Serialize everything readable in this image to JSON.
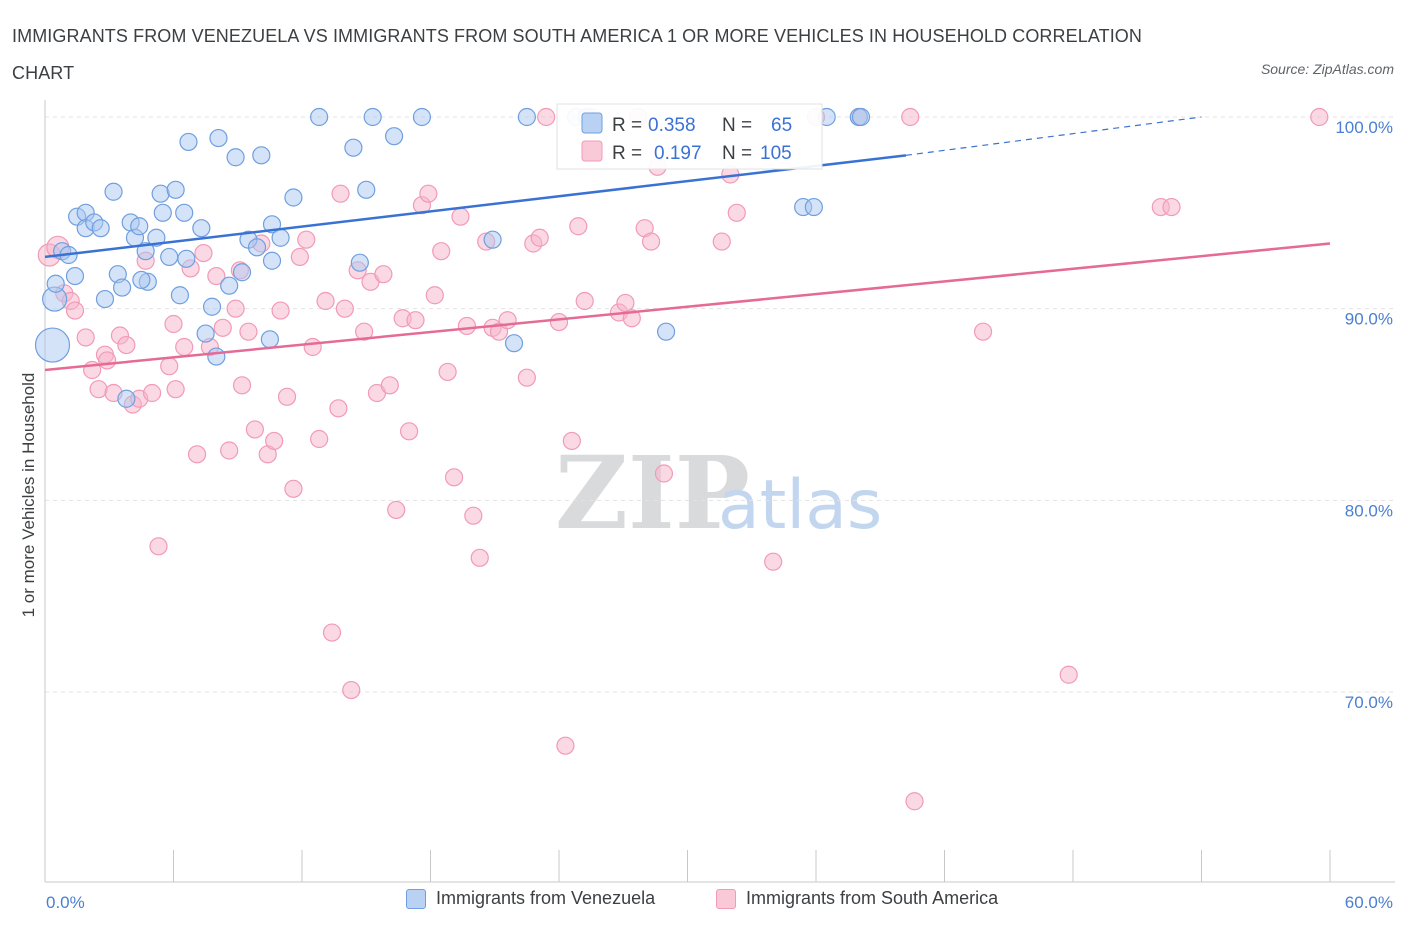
{
  "title": "IMMIGRANTS FROM VENEZUELA VS IMMIGRANTS FROM SOUTH AMERICA 1 OR MORE VEHICLES IN HOUSEHOLD CORRELATION CHART",
  "source": "Source: ZipAtlas.com",
  "watermark": {
    "zip": "ZIP",
    "atlas": "atlas"
  },
  "colors": {
    "venezuela": "#6f9fe0",
    "south_america": "#f29ab6",
    "venezuela_line": "#3a72d4",
    "south_america_line": "#e66a96"
  },
  "stats": {
    "r_label": "R =",
    "n_label": "N =",
    "venezuela": {
      "r": "0.358",
      "n": "65"
    },
    "south_america": {
      "r": "0.197",
      "n": "105"
    }
  },
  "legend": {
    "venezuela": "Immigrants from Venezuela",
    "south_america": "Immigrants from South America"
  },
  "chart_data": {
    "type": "scatter",
    "xlabel": "",
    "ylabel": "1 or more Vehicles in Household",
    "xlim": [
      0,
      60
    ],
    "ylim": [
      60,
      100
    ],
    "x_tick_labels": [
      "0.0%",
      "60.0%"
    ],
    "y_ticks": [
      70,
      80,
      90,
      100
    ],
    "y_tick_labels": [
      "70.0%",
      "80.0%",
      "90.0%",
      "100.0%"
    ],
    "grid": true,
    "legend_position": "bottom",
    "series": [
      {
        "name": "Immigrants from Venezuela",
        "trend": {
          "x0": 0,
          "y0": 92.7,
          "x1": 40.2,
          "y1": 98.0,
          "dashed_to_x": 54.0,
          "dashed_to_y": 100.0
        },
        "points": [
          [
            0.35,
            88.1
          ],
          [
            0.45,
            90.5
          ],
          [
            0.5,
            91.3
          ],
          [
            0.8,
            93.0
          ],
          [
            1.1,
            92.8
          ],
          [
            1.4,
            91.7
          ],
          [
            1.5,
            94.8
          ],
          [
            1.9,
            95.0
          ],
          [
            1.9,
            94.2
          ],
          [
            2.3,
            94.5
          ],
          [
            2.6,
            94.2
          ],
          [
            2.8,
            90.5
          ],
          [
            3.2,
            96.1
          ],
          [
            3.4,
            91.8
          ],
          [
            3.6,
            91.1
          ],
          [
            3.8,
            85.3
          ],
          [
            4.0,
            94.5
          ],
          [
            4.2,
            93.7
          ],
          [
            4.4,
            94.3
          ],
          [
            4.7,
            93.0
          ],
          [
            4.8,
            91.4
          ],
          [
            5.2,
            93.7
          ],
          [
            5.4,
            96.0
          ],
          [
            5.5,
            95.0
          ],
          [
            5.8,
            92.7
          ],
          [
            6.1,
            96.2
          ],
          [
            6.3,
            90.7
          ],
          [
            6.5,
            95.0
          ],
          [
            6.7,
            98.7
          ],
          [
            7.3,
            94.2
          ],
          [
            7.5,
            88.7
          ],
          [
            7.8,
            90.1
          ],
          [
            8.0,
            87.5
          ],
          [
            8.1,
            98.9
          ],
          [
            8.6,
            91.2
          ],
          [
            8.9,
            97.9
          ],
          [
            9.2,
            91.9
          ],
          [
            9.5,
            93.6
          ],
          [
            9.9,
            93.2
          ],
          [
            10.1,
            98.0
          ],
          [
            10.5,
            88.4
          ],
          [
            10.6,
            94.4
          ],
          [
            11.0,
            93.7
          ],
          [
            11.6,
            95.8
          ],
          [
            12.8,
            100.0
          ],
          [
            14.4,
            98.4
          ],
          [
            14.7,
            92.4
          ],
          [
            15.0,
            96.2
          ],
          [
            15.3,
            100.0
          ],
          [
            16.3,
            99.0
          ],
          [
            17.6,
            100.0
          ],
          [
            20.9,
            93.6
          ],
          [
            21.9,
            88.2
          ],
          [
            22.5,
            100.0
          ],
          [
            24.8,
            100.0
          ],
          [
            25.3,
            100.0
          ],
          [
            29.0,
            88.8
          ],
          [
            35.4,
            95.3
          ],
          [
            35.9,
            95.3
          ],
          [
            36.5,
            100.0
          ],
          [
            38.0,
            100.0
          ],
          [
            38.1,
            100.0
          ],
          [
            4.5,
            91.5
          ],
          [
            6.6,
            92.6
          ],
          [
            10.6,
            92.5
          ]
        ]
      },
      {
        "name": "Immigrants from South America",
        "trend": {
          "x0": 0,
          "y0": 86.8,
          "x1": 60,
          "y1": 93.4
        },
        "points": [
          [
            0.2,
            92.8
          ],
          [
            0.6,
            93.2
          ],
          [
            0.9,
            90.8
          ],
          [
            1.2,
            90.4
          ],
          [
            1.4,
            89.9
          ],
          [
            1.9,
            88.5
          ],
          [
            2.2,
            86.8
          ],
          [
            2.5,
            85.8
          ],
          [
            2.8,
            87.6
          ],
          [
            3.2,
            85.6
          ],
          [
            3.5,
            88.6
          ],
          [
            3.8,
            88.1
          ],
          [
            4.1,
            85.0
          ],
          [
            4.4,
            85.3
          ],
          [
            4.7,
            92.5
          ],
          [
            5.0,
            85.6
          ],
          [
            5.3,
            77.6
          ],
          [
            5.8,
            87.0
          ],
          [
            6.1,
            85.8
          ],
          [
            6.5,
            88.0
          ],
          [
            6.8,
            92.1
          ],
          [
            7.1,
            82.4
          ],
          [
            7.4,
            92.9
          ],
          [
            7.7,
            88.0
          ],
          [
            8.0,
            91.7
          ],
          [
            8.3,
            89.0
          ],
          [
            8.6,
            82.6
          ],
          [
            8.9,
            90.0
          ],
          [
            9.2,
            86.0
          ],
          [
            9.5,
            88.8
          ],
          [
            9.8,
            83.7
          ],
          [
            10.1,
            93.4
          ],
          [
            10.4,
            82.4
          ],
          [
            10.7,
            83.1
          ],
          [
            11.0,
            89.9
          ],
          [
            11.3,
            85.4
          ],
          [
            11.6,
            80.6
          ],
          [
            11.9,
            92.7
          ],
          [
            12.2,
            93.6
          ],
          [
            12.5,
            88.0
          ],
          [
            12.8,
            83.2
          ],
          [
            13.1,
            90.4
          ],
          [
            13.4,
            73.1
          ],
          [
            13.7,
            84.8
          ],
          [
            14.0,
            90.0
          ],
          [
            14.3,
            70.1
          ],
          [
            14.6,
            92.0
          ],
          [
            14.9,
            88.8
          ],
          [
            15.2,
            91.4
          ],
          [
            15.5,
            85.6
          ],
          [
            15.8,
            91.8
          ],
          [
            16.1,
            86.0
          ],
          [
            16.4,
            79.5
          ],
          [
            16.7,
            89.5
          ],
          [
            17.0,
            83.6
          ],
          [
            17.3,
            89.4
          ],
          [
            17.6,
            95.4
          ],
          [
            17.9,
            96.0
          ],
          [
            18.2,
            90.7
          ],
          [
            18.5,
            93.0
          ],
          [
            18.8,
            86.7
          ],
          [
            19.1,
            81.2
          ],
          [
            19.4,
            94.8
          ],
          [
            19.7,
            89.1
          ],
          [
            20.0,
            79.2
          ],
          [
            20.3,
            77.0
          ],
          [
            20.6,
            93.5
          ],
          [
            20.9,
            89.0
          ],
          [
            21.2,
            88.8
          ],
          [
            22.5,
            86.4
          ],
          [
            22.8,
            93.4
          ],
          [
            23.1,
            93.7
          ],
          [
            23.4,
            100.0
          ],
          [
            24.0,
            89.3
          ],
          [
            24.3,
            67.2
          ],
          [
            24.6,
            83.1
          ],
          [
            24.9,
            94.3
          ],
          [
            25.2,
            90.4
          ],
          [
            25.5,
            100.0
          ],
          [
            26.8,
            89.8
          ],
          [
            27.1,
            90.3
          ],
          [
            27.4,
            89.5
          ],
          [
            27.7,
            100.0
          ],
          [
            28.0,
            94.2
          ],
          [
            28.3,
            93.5
          ],
          [
            28.6,
            97.4
          ],
          [
            28.9,
            81.4
          ],
          [
            31.6,
            93.5
          ],
          [
            32.0,
            97.0
          ],
          [
            32.3,
            95.0
          ],
          [
            34.0,
            76.8
          ],
          [
            36.0,
            100.0
          ],
          [
            38.0,
            100.0
          ],
          [
            40.4,
            100.0
          ],
          [
            40.6,
            64.3
          ],
          [
            43.8,
            88.8
          ],
          [
            47.8,
            70.9
          ],
          [
            52.1,
            95.3
          ],
          [
            52.6,
            95.3
          ],
          [
            59.5,
            100.0
          ],
          [
            2.9,
            87.3
          ],
          [
            13.8,
            96.0
          ],
          [
            21.6,
            89.4
          ],
          [
            9.1,
            92.0
          ],
          [
            6.0,
            89.2
          ]
        ]
      }
    ]
  }
}
